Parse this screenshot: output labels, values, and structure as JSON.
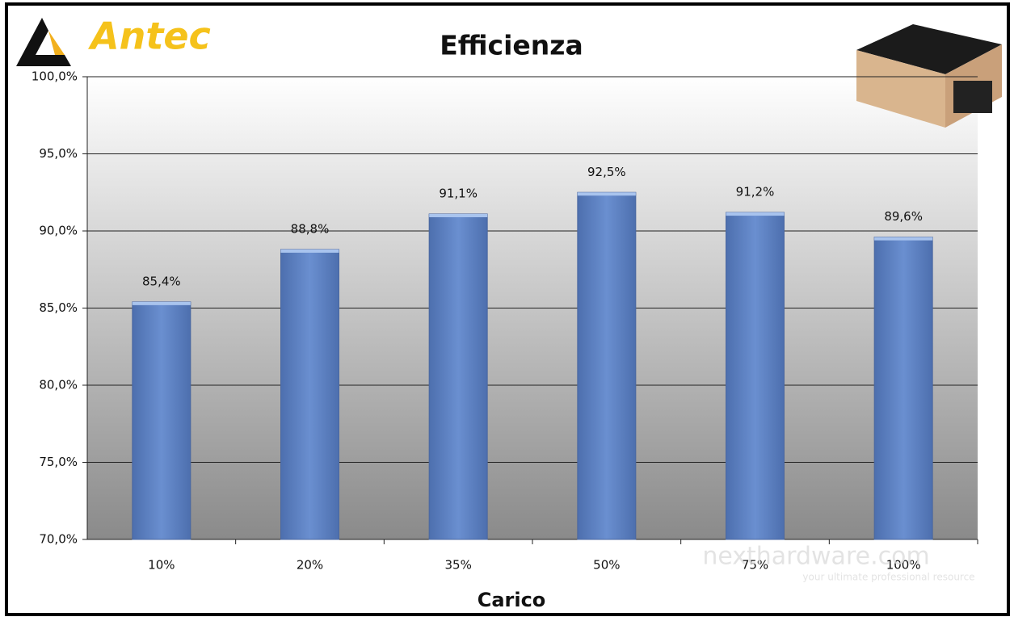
{
  "chart_data": {
    "type": "bar",
    "title": "Efficienza",
    "logo_text": "Antec",
    "x_label": "Carico",
    "categories": [
      "10%",
      "20%",
      "35%",
      "50%",
      "75%",
      "100%"
    ],
    "values": [
      85.4,
      88.8,
      91.1,
      92.5,
      91.2,
      89.6
    ],
    "value_labels": [
      "85,4%",
      "88,8%",
      "91,1%",
      "92,5%",
      "91,2%",
      "89,6%"
    ],
    "color": "#5b7fc0",
    "ylim": [
      70,
      100
    ],
    "yticks": [
      {
        "value": 70,
        "label": "70,0%"
      },
      {
        "value": 75,
        "label": "75,0%"
      },
      {
        "value": 80,
        "label": "80,0%"
      },
      {
        "value": 85,
        "label": "85,0%"
      },
      {
        "value": 90,
        "label": "90,0%"
      },
      {
        "value": 95,
        "label": "95,0%"
      },
      {
        "value": 100,
        "label": "100,0%"
      }
    ],
    "grid": true,
    "watermark": "nexthardware.com",
    "watermark_tagline": "your ultimate professional resource"
  }
}
